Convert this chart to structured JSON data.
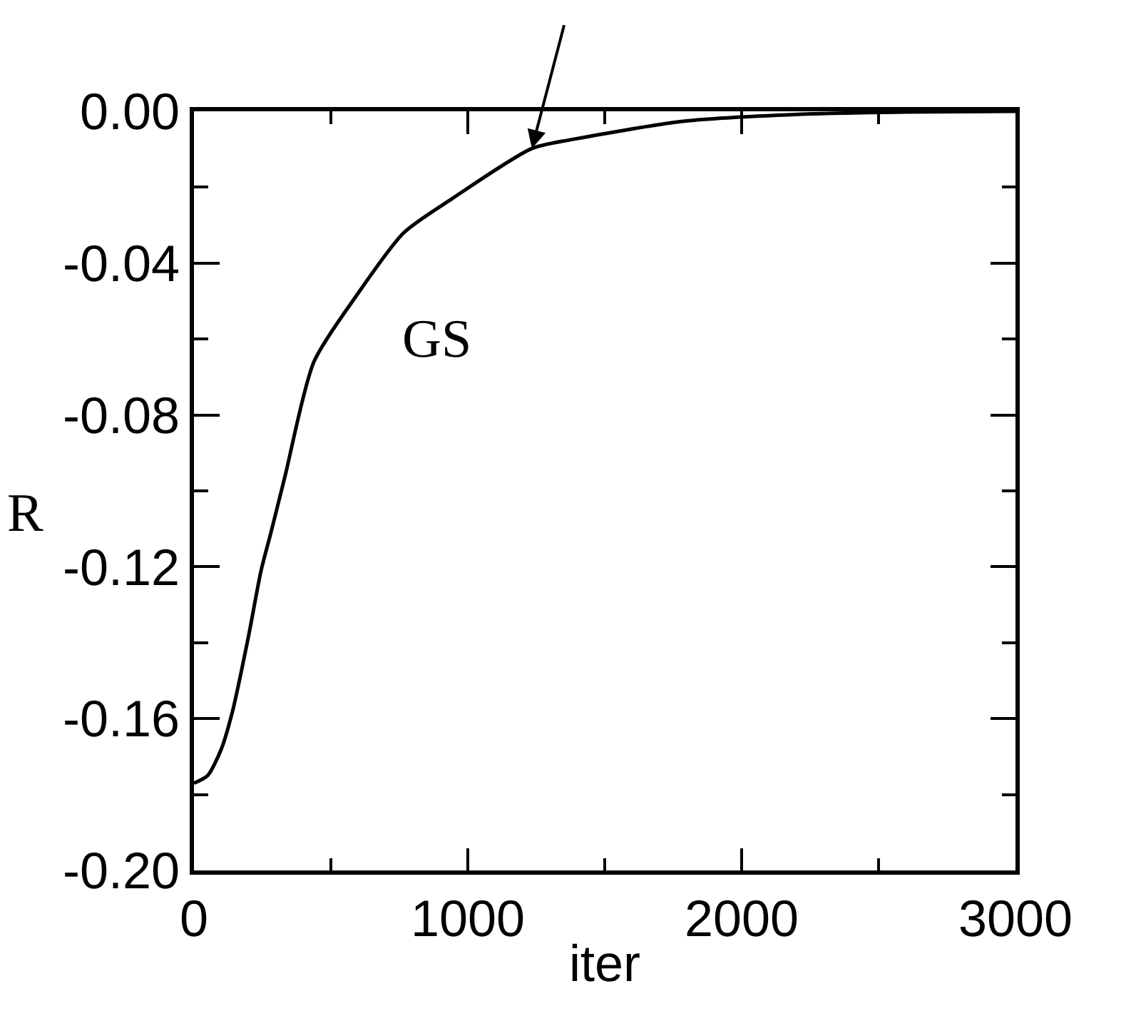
{
  "chart_data": {
    "type": "line",
    "xlabel": "iter",
    "ylabel": "R",
    "x": [
      0,
      50,
      100,
      141,
      200,
      245,
      281,
      333,
      438,
      594,
      766,
      943,
      1234,
      1375,
      1792,
      2208,
      2600,
      3000
    ],
    "series": [
      {
        "name": "GS",
        "color": "#000000",
        "values": [
          -0.177,
          -0.175,
          -0.168,
          -0.158,
          -0.138,
          -0.121,
          -0.111,
          -0.096,
          -0.066,
          -0.0485,
          -0.032,
          -0.023,
          -0.0098,
          -0.0075,
          -0.0026,
          -0.0008,
          -0.0002,
          0
        ]
      }
    ],
    "xlim": [
      0,
      3000
    ],
    "ylim": [
      -0.2,
      0
    ],
    "xticks": [
      0,
      {
        "value": 500,
        "label": null
      },
      1000,
      {
        "value": 1500,
        "label": null
      },
      2000,
      {
        "value": 2500,
        "label": null
      },
      3000
    ],
    "yticks": [
      {
        "value": -0.2,
        "label": "-0.20"
      },
      {
        "value": -0.18,
        "label": null
      },
      {
        "value": -0.16,
        "label": "-0.16"
      },
      {
        "value": -0.14,
        "label": null
      },
      {
        "value": -0.12,
        "label": "-0.12"
      },
      {
        "value": -0.1,
        "label": null
      },
      {
        "value": -0.08,
        "label": "-0.08"
      },
      {
        "value": -0.06,
        "label": null
      },
      {
        "value": -0.04,
        "label": "-0.04"
      },
      {
        "value": -0.02,
        "label": null
      },
      {
        "value": 0,
        "label": "0.00"
      }
    ],
    "legend": false,
    "marker": "none",
    "line_style": "solid"
  }
}
